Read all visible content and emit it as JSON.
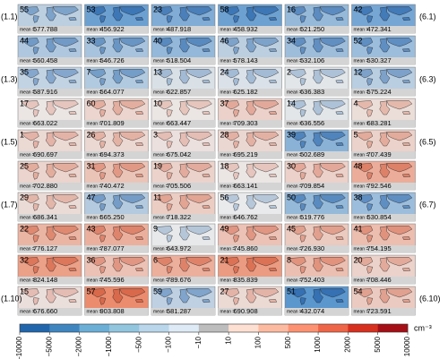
{
  "chart_data": {
    "type": "map-grid",
    "columns": 6,
    "panel_ids": [
      55,
      53,
      23,
      58,
      16,
      42,
      44,
      33,
      40,
      46,
      34,
      52,
      35,
      7,
      13,
      24,
      2,
      12,
      17,
      60,
      10,
      37,
      14,
      4,
      1,
      26,
      3,
      28,
      39,
      5,
      25,
      31,
      19,
      18,
      30,
      48,
      29,
      47,
      11,
      56,
      50,
      38,
      22,
      43,
      9,
      49,
      45,
      41,
      32,
      36,
      6,
      21,
      8,
      20,
      15,
      57,
      59,
      27,
      51,
      54
    ],
    "mean_label": "mean =",
    "values": [
      577.788,
      456.922,
      487.918,
      458.932,
      521.25,
      472.341,
      560.458,
      546.726,
      518.504,
      578.143,
      532.106,
      530.327,
      587.916,
      564.077,
      622.857,
      625.182,
      636.383,
      575.224,
      663.022,
      701.809,
      663.447,
      709.303,
      636.556,
      683.281,
      690.697,
      694.373,
      675.042,
      695.219,
      502.689,
      707.439,
      702.88,
      740.472,
      705.506,
      663.141,
      709.854,
      792.546,
      686.341,
      565.25,
      718.322,
      646.762,
      519.776,
      530.854,
      776.127,
      787.077,
      643.972,
      745.86,
      726.93,
      754.195,
      824.148,
      745.596,
      789.676,
      835.839,
      752.403,
      708.446,
      676.66,
      903.808,
      581.287,
      690.908,
      432.074,
      723.591
    ],
    "value_labels": [
      "577.788",
      "456.922",
      "487.918",
      "458.932",
      "521.250",
      "472.341",
      "560.458",
      "546.726",
      "518.504",
      "578.143",
      "532.106",
      "530.327",
      "587.916",
      "564.077",
      "622.857",
      "625.182",
      "636.383",
      "575.224",
      "663.022",
      "701.809",
      "663.447",
      "709.303",
      "636.556",
      "683.281",
      "690.697",
      "694.373",
      "675.042",
      "695.219",
      "502.689",
      "707.439",
      "702.880",
      "740.472",
      "705.506",
      "663.141",
      "709.854",
      "792.546",
      "686.341",
      "565.250",
      "718.322",
      "646.762",
      "519.776",
      "530.854",
      "776.127",
      "787.077",
      "643.972",
      "745.860",
      "726.930",
      "754.195",
      "824.148",
      "745.596",
      "789.676",
      "835.839",
      "752.403",
      "708.446",
      "676.660",
      "903.808",
      "581.287",
      "690.908",
      "432.074",
      "723.591"
    ],
    "left_labels": [
      "(1.1)",
      null,
      "(1.3)",
      null,
      "(1.5)",
      null,
      "(1.7)",
      null,
      null,
      "(1.10)"
    ],
    "right_labels": [
      "(6.1)",
      null,
      "(6.3)",
      null,
      "(6.5)",
      null,
      "(6.7)",
      null,
      null,
      "(6.10)"
    ],
    "colorbar": {
      "unit": "cm⁻³",
      "ticks": [
        {
          "value": -10000,
          "label": "−10000"
        },
        {
          "value": -5000,
          "label": "−5000"
        },
        {
          "value": -2000,
          "label": "−2000"
        },
        {
          "value": -1000,
          "label": "−1000"
        },
        {
          "value": -500,
          "label": "−500"
        },
        {
          "value": -100,
          "label": "−100"
        },
        {
          "value": -10,
          "label": "−10"
        },
        10,
        100,
        500,
        1000,
        2000,
        5000,
        10000
      ],
      "colors": [
        "#2166ac",
        "#3f86c0",
        "#6baed6",
        "#92c5de",
        "#b9d6ea",
        "#deebf7",
        "#bdbdbd",
        "#fee0d2",
        "#fcbba1",
        "#fc9272",
        "#ef6548",
        "#d7301f",
        "#a50f15"
      ]
    }
  }
}
